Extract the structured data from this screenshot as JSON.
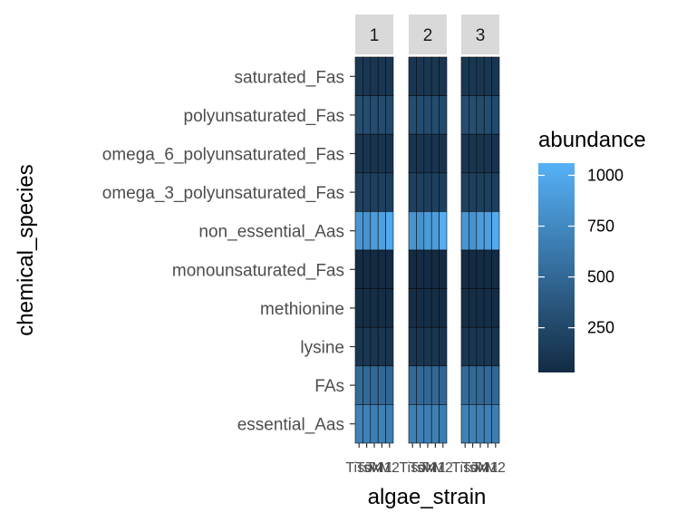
{
  "chart_data": {
    "type": "heatmap",
    "xlabel": "algae_strain",
    "ylabel": "chemical_species",
    "facets": [
      "1",
      "2",
      "3"
    ],
    "strains": [
      "Tiso",
      "Tsv",
      "T4",
      "M1",
      "M2"
    ],
    "species": [
      "saturated_Fas",
      "polyunsaturated_Fas",
      "omega_6_polyunsaturated_Fas",
      "omega_3_polyunsaturated_Fas",
      "non_essential_Aas",
      "monounsaturated_Fas",
      "methionine",
      "lysine",
      "FAs",
      "essential_Aas"
    ],
    "values": [
      [
        [
          130,
          125,
          120,
          125,
          115
        ],
        [
          300,
          290,
          280,
          285,
          270
        ],
        [
          110,
          105,
          100,
          105,
          95
        ],
        [
          200,
          195,
          190,
          195,
          185
        ],
        [
          850,
          830,
          900,
          920,
          1000
        ],
        [
          30,
          30,
          25,
          28,
          25
        ],
        [
          60,
          55,
          50,
          55,
          50
        ],
        [
          120,
          115,
          110,
          115,
          105
        ],
        [
          520,
          510,
          500,
          505,
          490
        ],
        [
          700,
          690,
          680,
          690,
          670
        ]
      ],
      [
        [
          125,
          120,
          118,
          122,
          112
        ],
        [
          290,
          285,
          275,
          280,
          265
        ],
        [
          108,
          102,
          98,
          102,
          92
        ],
        [
          195,
          190,
          185,
          190,
          180
        ],
        [
          840,
          820,
          890,
          910,
          1040
        ],
        [
          30,
          28,
          25,
          26,
          24
        ],
        [
          58,
          54,
          50,
          52,
          48
        ],
        [
          118,
          112,
          108,
          112,
          102
        ],
        [
          515,
          505,
          495,
          500,
          485
        ],
        [
          690,
          685,
          675,
          680,
          665
        ]
      ],
      [
        [
          128,
          122,
          120,
          124,
          114
        ],
        [
          295,
          288,
          278,
          282,
          268
        ],
        [
          109,
          104,
          99,
          103,
          94
        ],
        [
          198,
          192,
          188,
          192,
          182
        ],
        [
          845,
          825,
          895,
          915,
          1010
        ],
        [
          30,
          29,
          26,
          27,
          25
        ],
        [
          59,
          55,
          51,
          54,
          49
        ],
        [
          119,
          114,
          109,
          113,
          104
        ],
        [
          518,
          508,
          498,
          503,
          488
        ],
        [
          695,
          688,
          678,
          685,
          668
        ]
      ]
    ],
    "color_scale": {
      "low": "#132b43",
      "high": "#56b1f7",
      "domain": [
        30,
        1060
      ]
    },
    "legend": {
      "title": "abundance",
      "ticks": [
        250,
        500,
        750,
        1000
      ],
      "position": "right"
    }
  }
}
